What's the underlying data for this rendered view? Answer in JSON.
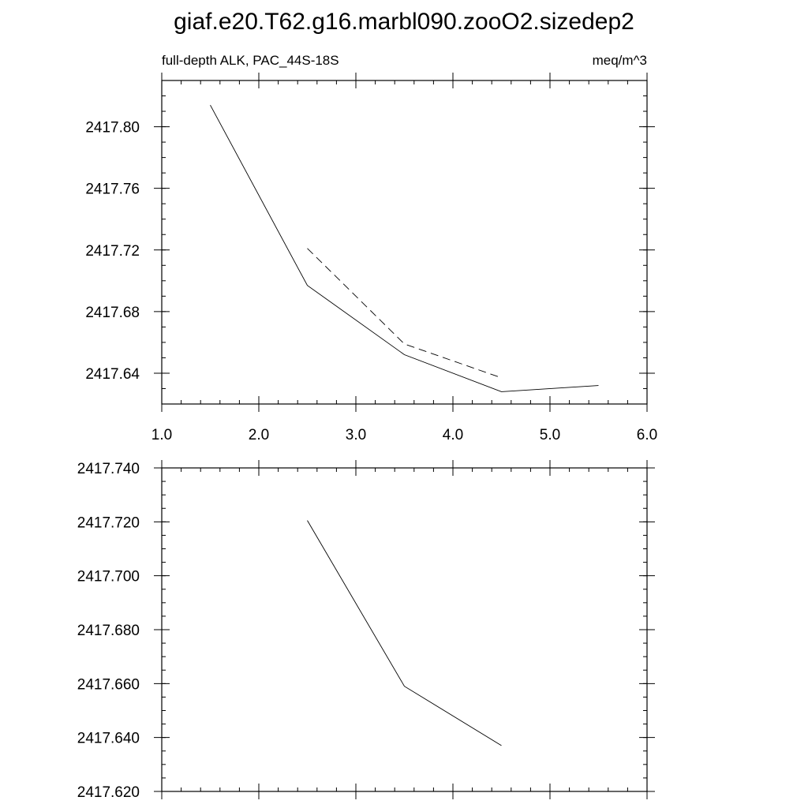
{
  "title": "giaf.e20.T62.g16.marbl090.zooO2.sizedep2",
  "chart_data": [
    {
      "type": "line",
      "left_label": "full-depth ALK, PAC_44S-18S",
      "right_label": "meq/m^3",
      "xlim": [
        1.0,
        6.0
      ],
      "ylim": [
        2417.62,
        2417.83
      ],
      "x_ticks": [
        1.0,
        2.0,
        3.0,
        4.0,
        5.0,
        6.0
      ],
      "x_tick_labels": [
        "1.0",
        "2.0",
        "3.0",
        "4.0",
        "5.0",
        "6.0"
      ],
      "y_ticks": [
        2417.64,
        2417.68,
        2417.72,
        2417.76,
        2417.8
      ],
      "y_tick_labels": [
        "2417.64",
        "2417.68",
        "2417.72",
        "2417.76",
        "2417.80"
      ],
      "grid": false,
      "series": [
        {
          "style": "solid",
          "color": "#000000",
          "x": [
            1.5,
            2.5,
            3.5,
            4.5,
            5.5
          ],
          "y": [
            2417.814,
            2417.697,
            2417.652,
            2417.628,
            2417.632
          ]
        },
        {
          "style": "dashed",
          "color": "#000000",
          "x": [
            2.5,
            3.5,
            4.5
          ],
          "y": [
            2417.721,
            2417.659,
            2417.637
          ]
        }
      ]
    },
    {
      "type": "line",
      "xlim": [
        1.0,
        6.0
      ],
      "ylim": [
        2417.62,
        2417.74
      ],
      "x_ticks": [
        1.0,
        2.0,
        3.0,
        4.0,
        5.0,
        6.0
      ],
      "x_tick_labels": [],
      "y_ticks": [
        2417.62,
        2417.64,
        2417.66,
        2417.68,
        2417.7,
        2417.72,
        2417.74
      ],
      "y_tick_labels": [
        "2417.620",
        "2417.640",
        "2417.660",
        "2417.680",
        "2417.700",
        "2417.720",
        "2417.740"
      ],
      "grid": false,
      "series": [
        {
          "style": "solid",
          "color": "#000000",
          "x": [
            2.5,
            3.5,
            4.5
          ],
          "y": [
            2417.7205,
            2417.659,
            2417.637
          ]
        }
      ]
    }
  ]
}
